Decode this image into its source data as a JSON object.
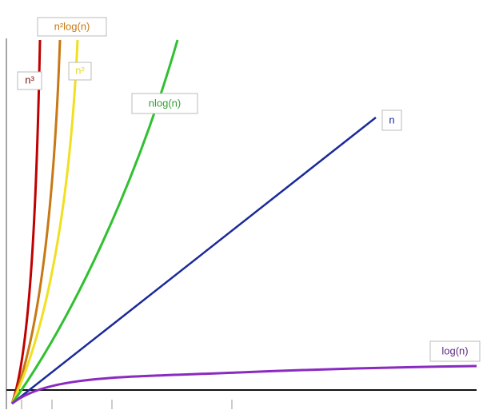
{
  "labels": {
    "n_cubed": "n³",
    "n2_log_n": "n²log(n)",
    "n_squared": "n²",
    "n_log_n": "nlog(n)",
    "n": "n",
    "log_n": "log(n)"
  }
}
